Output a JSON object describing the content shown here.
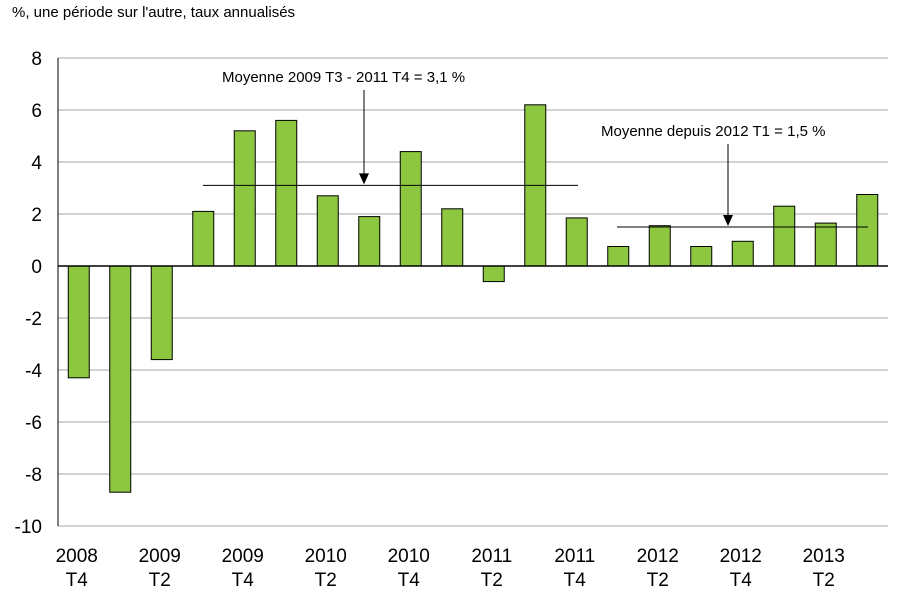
{
  "chart_data": {
    "type": "bar",
    "unit_label": "%, une période sur l'autre, taux annualisés",
    "categories": [
      "2008 T4",
      "2009 T1",
      "2009 T2",
      "2009 T3",
      "2009 T4",
      "2010 T1",
      "2010 T2",
      "2010 T3",
      "2010 T4",
      "2011 T1",
      "2011 T2",
      "2011 T3",
      "2011 T4",
      "2012 T1",
      "2012 T2",
      "2012 T3",
      "2012 T4",
      "2013 T1",
      "2013 T2",
      "2013 T3"
    ],
    "values": [
      -4.3,
      -8.7,
      -3.6,
      2.1,
      5.2,
      5.6,
      2.7,
      1.9,
      4.4,
      2.2,
      -0.6,
      6.2,
      1.85,
      0.75,
      1.55,
      0.75,
      0.95,
      2.3,
      1.65,
      2.75
    ],
    "x_tick_labels": [
      {
        "year": "2008",
        "quarter": "T4"
      },
      {
        "year": "2009",
        "quarter": "T2"
      },
      {
        "year": "2009",
        "quarter": "T4"
      },
      {
        "year": "2010",
        "quarter": "T2"
      },
      {
        "year": "2010",
        "quarter": "T4"
      },
      {
        "year": "2011",
        "quarter": "T2"
      },
      {
        "year": "2011",
        "quarter": "T4"
      },
      {
        "year": "2012",
        "quarter": "T2"
      },
      {
        "year": "2012",
        "quarter": "T4"
      },
      {
        "year": "2013",
        "quarter": "T2"
      }
    ],
    "yticks": [
      "8",
      "6",
      "4",
      "2",
      "0",
      "-2",
      "-4",
      "-6",
      "-8",
      "-10"
    ],
    "ylim": [
      -10,
      8
    ],
    "grid": true,
    "bar_color": "#8dc63f",
    "averages": [
      {
        "label": "Moyenne 2009 T3 - 2011 T4 = 3,1 %",
        "value": 3.1,
        "from_category": "2009 T3",
        "to_category": "2011 T4"
      },
      {
        "label": "Moyenne depuis 2012 T1 = 1,5 %",
        "value": 1.5,
        "from_category": "2012 T1",
        "to_category": "2013 T3"
      }
    ]
  }
}
